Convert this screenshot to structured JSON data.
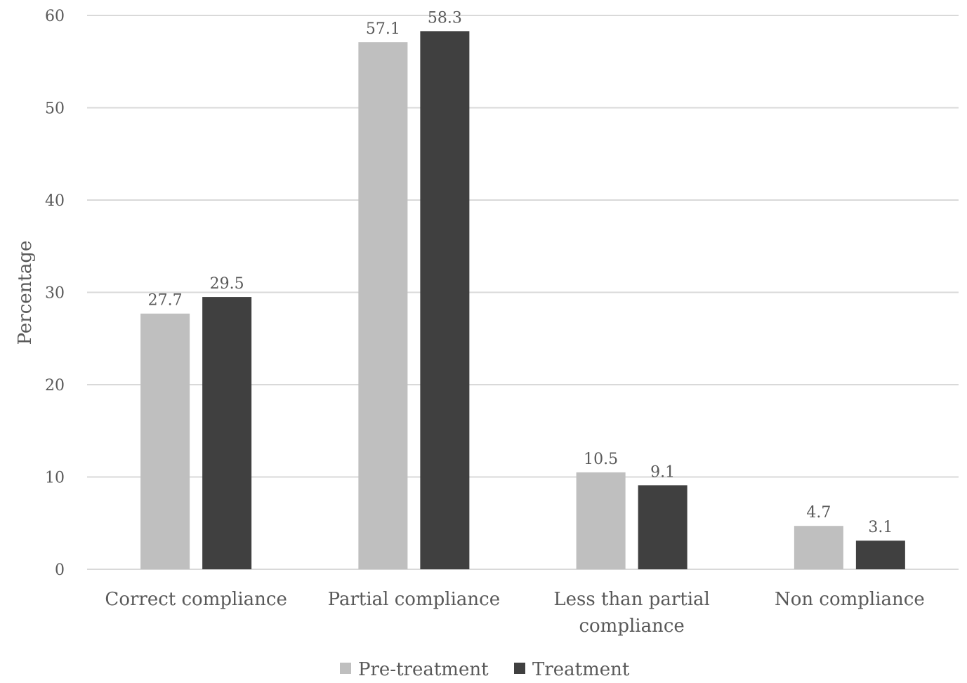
{
  "chart_data": {
    "type": "bar",
    "title": "",
    "xlabel": "",
    "ylabel": "Percentage",
    "ylim": [
      0,
      60
    ],
    "yticks": [
      0,
      10,
      20,
      30,
      40,
      50,
      60
    ],
    "grid": true,
    "legend_position": "bottom",
    "categories": [
      [
        "Correct compliance"
      ],
      [
        "Partial compliance"
      ],
      [
        "Less than partial",
        "compliance"
      ],
      [
        "Non compliance"
      ]
    ],
    "series": [
      {
        "name": "Pre-treatment",
        "color": "#bfbfbf",
        "values": [
          27.7,
          57.1,
          10.5,
          4.7
        ]
      },
      {
        "name": "Treatment",
        "color": "#404040",
        "values": [
          29.5,
          58.3,
          9.1,
          3.1
        ]
      }
    ],
    "gridline_color": "#d9d9d9"
  }
}
